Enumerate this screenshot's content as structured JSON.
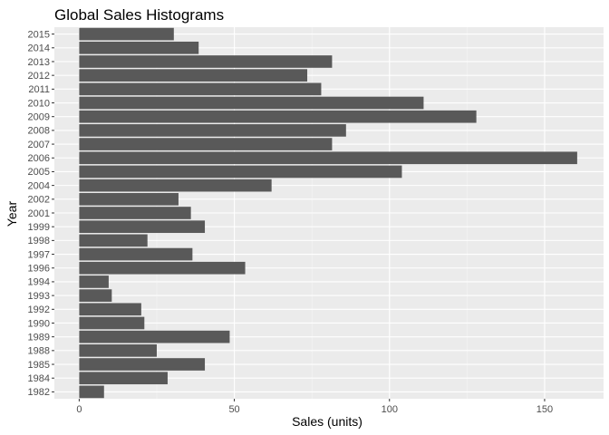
{
  "chart_data": {
    "type": "bar",
    "orientation": "horizontal",
    "title": "Global Sales Histograms",
    "xlabel": "Sales (units)",
    "ylabel": "Year",
    "categories": [
      "1982",
      "1984",
      "1985",
      "1988",
      "1989",
      "1990",
      "1992",
      "1993",
      "1994",
      "1996",
      "1997",
      "1998",
      "1999",
      "2001",
      "2002",
      "2004",
      "2005",
      "2006",
      "2007",
      "2008",
      "2009",
      "2010",
      "2011",
      "2012",
      "2013",
      "2014",
      "2015"
    ],
    "values": [
      8,
      28.5,
      40.5,
      25,
      48.5,
      21,
      20,
      10.5,
      9.5,
      53.5,
      36.5,
      22,
      40.5,
      36,
      32,
      62,
      104,
      160.5,
      81.5,
      86,
      128,
      111,
      78,
      73.5,
      81.5,
      38.5,
      30.5
    ],
    "xlim": [
      -8,
      169
    ],
    "x_ticks": [
      0,
      50,
      100,
      150
    ],
    "x_tick_labels": [
      "0",
      "50",
      "100",
      "150"
    ],
    "grid": true,
    "colors": {
      "bar": "#595959",
      "panel": "#ebebeb",
      "grid_major": "#ffffff",
      "grid_minor": "#f5f5f5"
    }
  }
}
